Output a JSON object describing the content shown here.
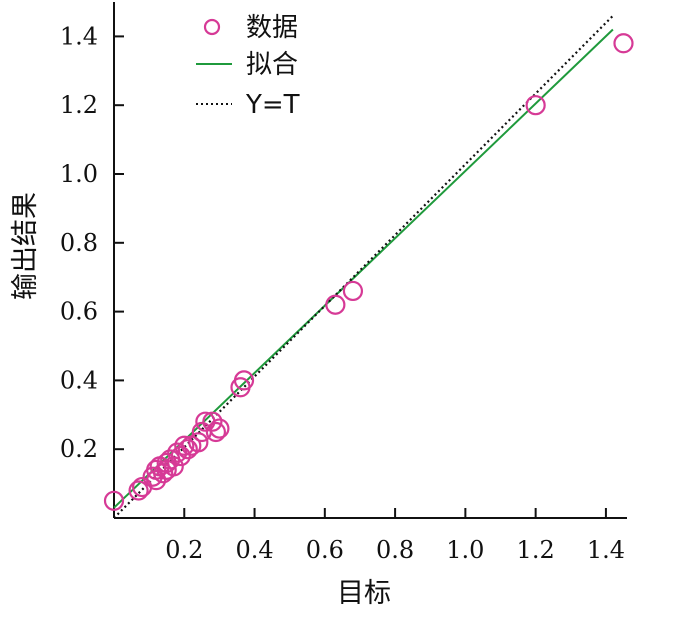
{
  "chart_data": {
    "type": "scatter",
    "xlabel": "目标",
    "ylabel": "输出结果",
    "xlim": [
      0,
      1.46
    ],
    "ylim": [
      0,
      1.5
    ],
    "xticks": [
      "0.2",
      "0.4",
      "0.6",
      "0.8",
      "1.0",
      "1.2",
      "1.4"
    ],
    "yticks": [
      "0.2",
      "0.4",
      "0.6",
      "0.8",
      "1.0",
      "1.2",
      "1.4"
    ],
    "xtick_values": [
      0.2,
      0.4,
      0.6,
      0.8,
      1.0,
      1.2,
      1.4
    ],
    "ytick_values": [
      0.2,
      0.4,
      0.6,
      0.8,
      1.0,
      1.2,
      1.4
    ],
    "grid": false,
    "legend_position": "top-left",
    "series": [
      {
        "name": "数据",
        "kind": "points",
        "color": "#d63a96",
        "points": [
          [
            0.0,
            0.05
          ],
          [
            0.07,
            0.08
          ],
          [
            0.08,
            0.09
          ],
          [
            0.11,
            0.12
          ],
          [
            0.12,
            0.11
          ],
          [
            0.12,
            0.14
          ],
          [
            0.13,
            0.15
          ],
          [
            0.14,
            0.13
          ],
          [
            0.15,
            0.16
          ],
          [
            0.15,
            0.14
          ],
          [
            0.16,
            0.17
          ],
          [
            0.17,
            0.15
          ],
          [
            0.18,
            0.19
          ],
          [
            0.19,
            0.18
          ],
          [
            0.2,
            0.21
          ],
          [
            0.21,
            0.2
          ],
          [
            0.22,
            0.21
          ],
          [
            0.24,
            0.22
          ],
          [
            0.25,
            0.25
          ],
          [
            0.26,
            0.28
          ],
          [
            0.28,
            0.28
          ],
          [
            0.29,
            0.25
          ],
          [
            0.3,
            0.26
          ],
          [
            0.36,
            0.38
          ],
          [
            0.37,
            0.4
          ],
          [
            0.63,
            0.62
          ],
          [
            0.68,
            0.66
          ],
          [
            1.2,
            1.2
          ],
          [
            1.45,
            1.38
          ]
        ]
      },
      {
        "name": "拟合",
        "kind": "line",
        "color": "#1f9a3c",
        "points": [
          [
            0.0,
            0.03
          ],
          [
            1.42,
            1.42
          ]
        ]
      },
      {
        "name": "Y=T",
        "kind": "dotted-line",
        "color": "#111111",
        "points": [
          [
            0.0,
            0.0
          ],
          [
            1.42,
            1.46
          ]
        ]
      }
    ]
  }
}
